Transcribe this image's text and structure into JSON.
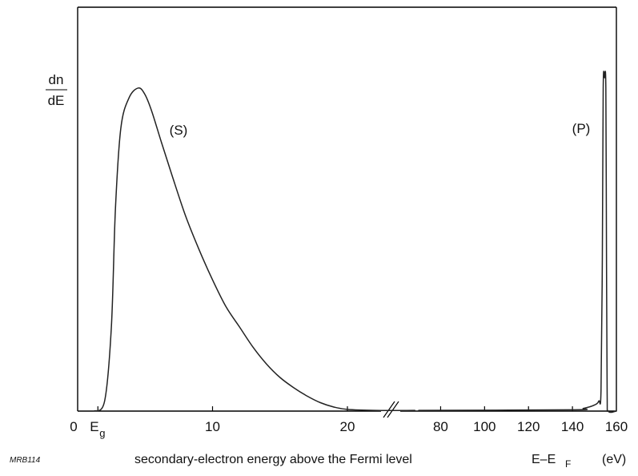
{
  "chart_data": {
    "type": "line",
    "ylabel": {
      "numerator": "dn",
      "denominator": "dE"
    },
    "xlabel": {
      "text": "secondary-electron energy above the Fermi level",
      "symbol_main": "E–E",
      "symbol_subscript": "F",
      "unit": "(eV)"
    },
    "figure_code": "MRB114",
    "axis_break": true,
    "grid": false,
    "colors": {
      "curve": "#222222",
      "axes": "#000000",
      "text": "#111111"
    },
    "x_ticks": {
      "left_segment": [
        "0",
        "10",
        "20"
      ],
      "right_segment": [
        "80",
        "100",
        "120",
        "140",
        "160"
      ]
    },
    "special_tick": {
      "main": "E",
      "subscript": "g"
    },
    "annotations": [
      {
        "text": "(S)",
        "near_x": 6
      },
      {
        "text": "(P)",
        "near_x": 155
      }
    ],
    "segments": [
      {
        "name": "low-energy segment",
        "x_range": [
          0,
          25
        ],
        "points": [
          [
            1.2,
            0.0
          ],
          [
            2.0,
            0.03
          ],
          [
            2.5,
            0.25
          ],
          [
            2.8,
            0.6
          ],
          [
            3.2,
            0.84
          ],
          [
            3.8,
            0.93
          ],
          [
            4.5,
            0.96
          ],
          [
            5.0,
            0.94
          ],
          [
            5.5,
            0.89
          ],
          [
            6.2,
            0.8
          ],
          [
            7.0,
            0.7
          ],
          [
            8.0,
            0.58
          ],
          [
            9.0,
            0.48
          ],
          [
            10.0,
            0.39
          ],
          [
            11.0,
            0.31
          ],
          [
            12.0,
            0.25
          ],
          [
            13.0,
            0.19
          ],
          [
            14.0,
            0.14
          ],
          [
            15.0,
            0.1
          ],
          [
            16.0,
            0.07
          ],
          [
            17.0,
            0.045
          ],
          [
            18.0,
            0.025
          ],
          [
            19.0,
            0.012
          ],
          [
            20.0,
            0.005
          ],
          [
            22.0,
            0.002
          ],
          [
            25.0,
            0.002
          ]
        ]
      },
      {
        "name": "high-energy segment",
        "x_range": [
          70,
          160
        ],
        "points": [
          [
            70.0,
            0.002
          ],
          [
            140.0,
            0.004
          ],
          [
            145.0,
            0.008
          ],
          [
            150.0,
            0.018
          ],
          [
            152.0,
            0.03
          ],
          [
            153.0,
            0.06
          ],
          [
            153.6,
            0.45
          ],
          [
            154.0,
            0.96
          ],
          [
            154.6,
            0.99
          ],
          [
            155.2,
            0.96
          ],
          [
            155.5,
            0.45
          ],
          [
            155.8,
            0.05
          ],
          [
            156.3,
            0.0
          ],
          [
            160.0,
            0.0
          ]
        ]
      }
    ],
    "y_range": [
      0,
      1.2
    ]
  }
}
